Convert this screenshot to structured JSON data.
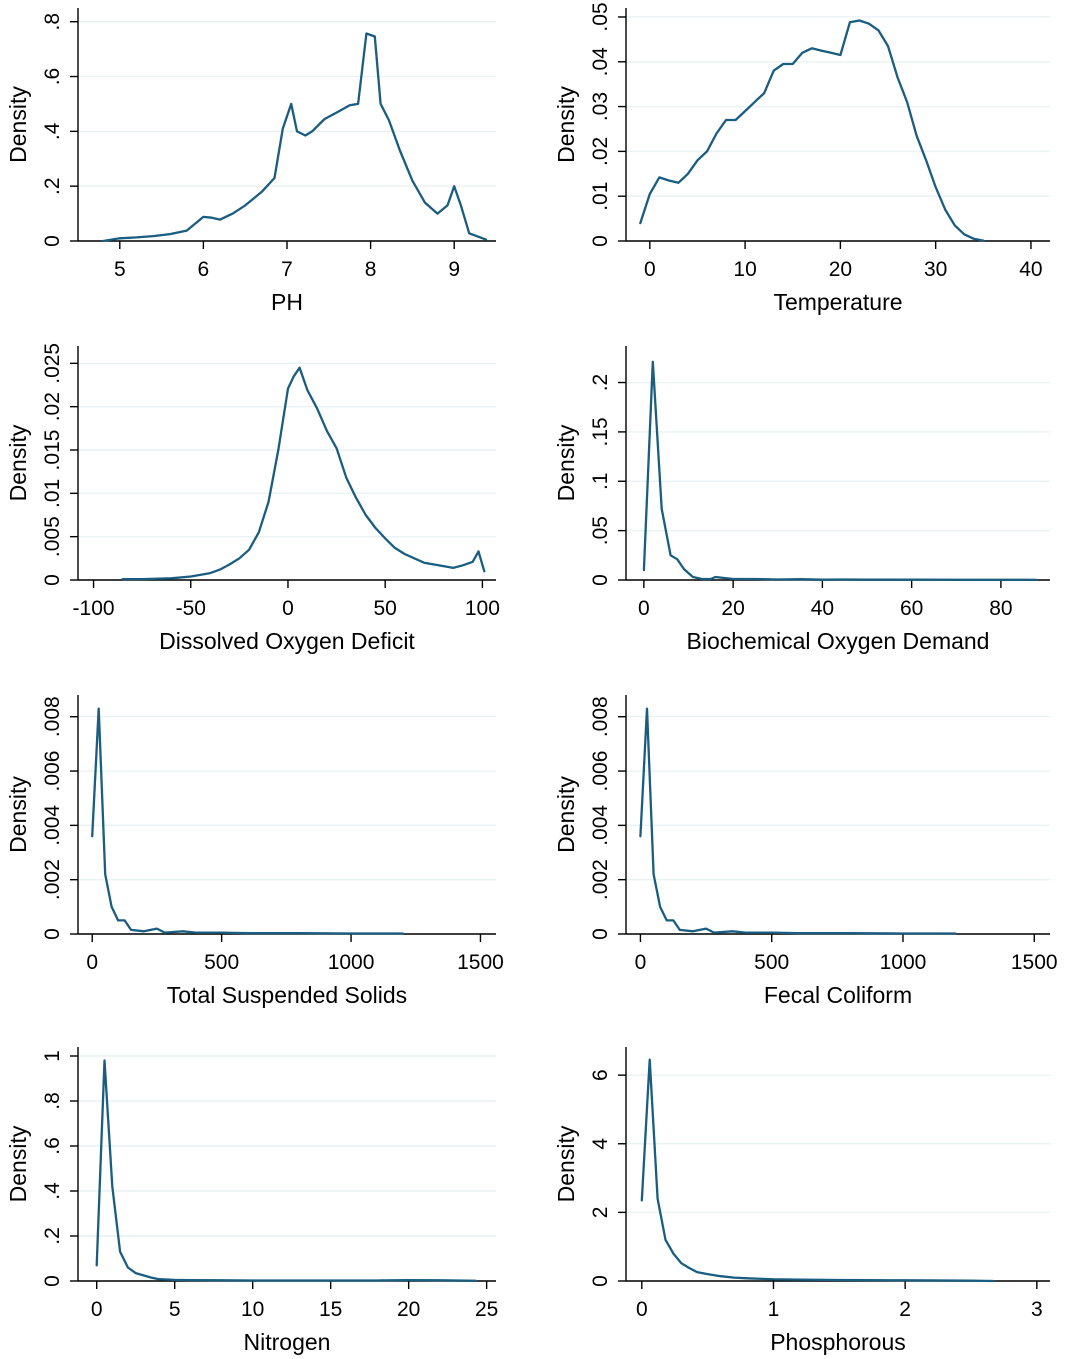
{
  "chart_data": [
    {
      "type": "line",
      "xlabel": "PH",
      "ylabel": "Density",
      "xlim": [
        4.5,
        9.5
      ],
      "ylim": [
        0,
        0.85
      ],
      "xticks": [
        5,
        6,
        7,
        8,
        9
      ],
      "xtick_labels": [
        "5",
        "6",
        "7",
        "8",
        "9"
      ],
      "yticks": [
        0,
        0.2,
        0.4,
        0.6,
        0.8
      ],
      "ytick_labels": [
        "0",
        ".2",
        ".4",
        ".6",
        ".8"
      ],
      "grid": true,
      "color": "#1a5d80",
      "x": [
        4.8,
        5.0,
        5.2,
        5.4,
        5.6,
        5.8,
        6.0,
        6.1,
        6.2,
        6.35,
        6.5,
        6.7,
        6.85,
        6.95,
        7.05,
        7.12,
        7.22,
        7.3,
        7.45,
        7.6,
        7.75,
        7.85,
        7.95,
        8.05,
        8.12,
        8.22,
        8.35,
        8.5,
        8.65,
        8.8,
        8.92,
        9.0,
        9.08,
        9.18,
        9.38
      ],
      "y": [
        0.0,
        0.01,
        0.013,
        0.018,
        0.025,
        0.038,
        0.088,
        0.085,
        0.078,
        0.1,
        0.13,
        0.18,
        0.23,
        0.41,
        0.5,
        0.4,
        0.385,
        0.4,
        0.445,
        0.47,
        0.495,
        0.5,
        0.757,
        0.746,
        0.5,
        0.44,
        0.33,
        0.22,
        0.14,
        0.1,
        0.13,
        0.2,
        0.13,
        0.028,
        0.005
      ]
    },
    {
      "type": "line",
      "xlabel": "Temperature",
      "ylabel": "Density",
      "xlim": [
        -2.5,
        42
      ],
      "ylim": [
        0,
        0.052
      ],
      "xticks": [
        0,
        10,
        20,
        30,
        40
      ],
      "xtick_labels": [
        "0",
        "10",
        "20",
        "30",
        "40"
      ],
      "yticks": [
        0,
        0.01,
        0.02,
        0.03,
        0.04,
        0.05
      ],
      "ytick_labels": [
        "0",
        ".01",
        ".02",
        ".03",
        ".04",
        ".05"
      ],
      "grid": true,
      "color": "#1a5d80",
      "x": [
        -1,
        0,
        1,
        2,
        3,
        4,
        5,
        6,
        7,
        8,
        9,
        10,
        11,
        12,
        13,
        14,
        15,
        16,
        17,
        18,
        19,
        20,
        21,
        22,
        23,
        24,
        25,
        26,
        27,
        28,
        29,
        30,
        31,
        32,
        33,
        34,
        35
      ],
      "y": [
        0.004,
        0.0105,
        0.0142,
        0.0135,
        0.013,
        0.015,
        0.018,
        0.02,
        0.024,
        0.027,
        0.027,
        0.029,
        0.031,
        0.033,
        0.038,
        0.0395,
        0.0395,
        0.042,
        0.043,
        0.0425,
        0.042,
        0.0415,
        0.0488,
        0.0492,
        0.0485,
        0.047,
        0.0435,
        0.0365,
        0.031,
        0.0235,
        0.018,
        0.012,
        0.007,
        0.0035,
        0.0015,
        0.0005,
        0.0001
      ]
    },
    {
      "type": "line",
      "xlabel": "Dissolved Oxygen Deficit",
      "ylabel": "Density",
      "xlim": [
        -108,
        107
      ],
      "ylim": [
        0,
        0.027
      ],
      "xticks": [
        -100,
        -50,
        0,
        50,
        100
      ],
      "xtick_labels": [
        "-100",
        "-50",
        "0",
        "50",
        "100"
      ],
      "yticks": [
        0,
        0.005,
        0.01,
        0.015,
        0.02,
        0.025
      ],
      "ytick_labels": [
        "0",
        ".005",
        ".01",
        ".015",
        ".02",
        ".025"
      ],
      "grid": true,
      "color": "#1a5d80",
      "x": [
        -85,
        -75,
        -60,
        -50,
        -40,
        -35,
        -30,
        -25,
        -20,
        -15,
        -10,
        -5,
        0,
        3,
        6,
        10,
        15,
        20,
        25,
        30,
        35,
        40,
        45,
        50,
        55,
        60,
        70,
        80,
        85,
        90,
        95,
        98,
        101
      ],
      "y": [
        0.0001,
        0.0001,
        0.0002,
        0.0004,
        0.0008,
        0.0012,
        0.0018,
        0.0025,
        0.0035,
        0.0055,
        0.009,
        0.015,
        0.0221,
        0.0235,
        0.0245,
        0.0219,
        0.0198,
        0.0172,
        0.0152,
        0.0118,
        0.0095,
        0.0075,
        0.006,
        0.0048,
        0.0037,
        0.003,
        0.002,
        0.0016,
        0.0014,
        0.0017,
        0.0021,
        0.0033,
        0.001
      ]
    },
    {
      "type": "line",
      "xlabel": "Biochemical Oxygen Demand",
      "ylabel": "Density",
      "xlim": [
        -4,
        91
      ],
      "ylim": [
        0,
        0.237
      ],
      "xticks": [
        0,
        20,
        40,
        60,
        80
      ],
      "xtick_labels": [
        "0",
        "20",
        "40",
        "60",
        "80"
      ],
      "yticks": [
        0,
        0.05,
        0.1,
        0.15,
        0.2
      ],
      "ytick_labels": [
        "0",
        ".05",
        ".1",
        ".15",
        ".2"
      ],
      "grid": true,
      "color": "#1a5d80",
      "x": [
        0,
        2,
        4,
        6,
        7.5,
        9,
        11,
        13,
        15,
        16,
        18,
        20,
        25,
        30,
        35,
        40,
        45,
        50,
        55,
        60,
        70,
        80,
        85,
        88
      ],
      "y": [
        0.01,
        0.221,
        0.072,
        0.025,
        0.021,
        0.011,
        0.003,
        0.001,
        0.001,
        0.003,
        0.002,
        0.001,
        0.001,
        0.0005,
        0.0008,
        0.0003,
        0.0005,
        0.0003,
        0.0003,
        0.0004,
        0.0002,
        0.0002,
        0.0002,
        0.0001
      ]
    },
    {
      "type": "line",
      "xlabel": "Total Suspended Solids",
      "ylabel": "Density",
      "xlim": [
        -55,
        1560
      ],
      "ylim": [
        0,
        0.0088
      ],
      "xticks": [
        0,
        500,
        1000,
        1500
      ],
      "xtick_labels": [
        "0",
        "500",
        "1000",
        "1500"
      ],
      "yticks": [
        0,
        0.002,
        0.004,
        0.006,
        0.008
      ],
      "ytick_labels": [
        "0",
        ".002",
        ".004",
        ".006",
        ".008"
      ],
      "grid": true,
      "color": "#1a5d80",
      "x": [
        0,
        25,
        50,
        75,
        100,
        125,
        150,
        200,
        250,
        280,
        350,
        400,
        500,
        600,
        800,
        1000,
        1200
      ],
      "y": [
        0.0036,
        0.0083,
        0.0022,
        0.001,
        0.0005,
        0.0005,
        0.00015,
        0.0001,
        0.0002,
        5e-05,
        0.0001,
        5e-05,
        5e-05,
        3e-05,
        3e-05,
        2e-05,
        2e-05
      ]
    },
    {
      "type": "line",
      "xlabel": "Fecal Coliform",
      "ylabel": "Density",
      "xlim": [
        -55,
        1560
      ],
      "ylim": [
        0,
        0.0088
      ],
      "xticks": [
        0,
        500,
        1000,
        1500
      ],
      "xtick_labels": [
        "0",
        "500",
        "1000",
        "1500"
      ],
      "yticks": [
        0,
        0.002,
        0.004,
        0.006,
        0.008
      ],
      "ytick_labels": [
        "0",
        ".002",
        ".004",
        ".006",
        ".008"
      ],
      "grid": true,
      "color": "#1a5d80",
      "x": [
        0,
        25,
        50,
        75,
        100,
        125,
        150,
        200,
        250,
        280,
        350,
        400,
        500,
        600,
        800,
        1000,
        1200
      ],
      "y": [
        0.0036,
        0.0083,
        0.0022,
        0.001,
        0.0005,
        0.0005,
        0.00015,
        0.0001,
        0.0002,
        5e-05,
        0.0001,
        5e-05,
        5e-05,
        3e-05,
        3e-05,
        2e-05,
        2e-05
      ]
    },
    {
      "type": "line",
      "xlabel": "Nitrogen",
      "ylabel": "Density",
      "xlim": [
        -1.2,
        25.6
      ],
      "ylim": [
        0,
        1.04
      ],
      "xticks": [
        0,
        5,
        10,
        15,
        20,
        25
      ],
      "xtick_labels": [
        "0",
        "5",
        "10",
        "15",
        "20",
        "25"
      ],
      "yticks": [
        0,
        0.2,
        0.4,
        0.6,
        0.8,
        1
      ],
      "ytick_labels": [
        "0",
        ".2",
        ".4",
        ".6",
        ".8",
        "1"
      ],
      "grid": true,
      "color": "#1a5d80",
      "x": [
        0,
        0.5,
        1,
        1.5,
        2,
        2.5,
        3,
        3.5,
        4,
        5,
        6,
        8,
        10,
        12,
        14,
        16,
        18,
        20,
        22,
        24.3
      ],
      "y": [
        0.07,
        0.98,
        0.42,
        0.13,
        0.06,
        0.035,
        0.025,
        0.015,
        0.008,
        0.005,
        0.004,
        0.003,
        0.002,
        0.002,
        0.002,
        0.002,
        0.002,
        0.004,
        0.003,
        0.001
      ]
    },
    {
      "type": "line",
      "xlabel": "Phosphorous",
      "ylabel": "Density",
      "xlim": [
        -0.12,
        3.1
      ],
      "ylim": [
        0,
        6.82
      ],
      "xticks": [
        0,
        1,
        2,
        3
      ],
      "xtick_labels": [
        "0",
        "1",
        "2",
        "3"
      ],
      "yticks": [
        0,
        2,
        4,
        6
      ],
      "ytick_labels": [
        "0",
        "2",
        "4",
        "6"
      ],
      "grid": true,
      "color": "#1a5d80",
      "x": [
        0,
        0.06,
        0.12,
        0.18,
        0.24,
        0.3,
        0.36,
        0.42,
        0.5,
        0.6,
        0.7,
        0.8,
        1.0,
        1.2,
        1.5,
        2.0,
        2.5,
        2.67
      ],
      "y": [
        2.35,
        6.45,
        2.4,
        1.2,
        0.8,
        0.52,
        0.38,
        0.26,
        0.2,
        0.14,
        0.1,
        0.08,
        0.05,
        0.04,
        0.03,
        0.02,
        0.01,
        0.0
      ]
    }
  ]
}
